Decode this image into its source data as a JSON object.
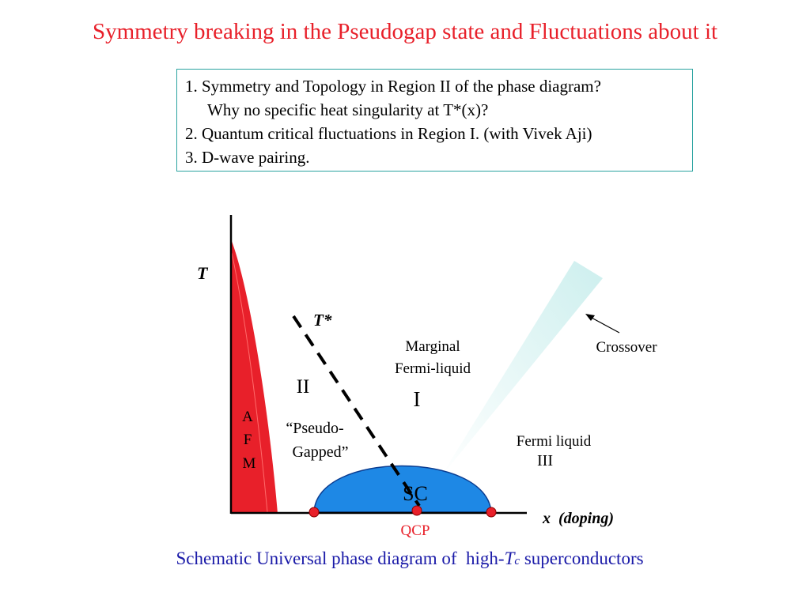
{
  "title": "Symmetry breaking in the Pseudogap state and Fluctuations about it",
  "questions": [
    "1. Symmetry and Topology in Region II of the phase diagram?",
    "Why no specific heat singularity at T*(x)?",
    "2. Quantum critical fluctuations in Region I. (with Vivek Aji)",
    "3. D-wave pairing."
  ],
  "diagram": {
    "y_axis_label": "T",
    "x_axis_label": "x  (doping)",
    "tstar_label": "T*",
    "marginal_line1": "Marginal",
    "marginal_line2": "Fermi-liquid",
    "region_one": "I",
    "region_two": "II",
    "region_three": "III",
    "pseudo_line1": "“Pseudo-",
    "pseudo_line2": "Gapped”",
    "afm_a": "A",
    "afm_f": "F",
    "afm_m": "M",
    "fermi_liquid": "Fermi liquid",
    "crossover": "Crossover",
    "sc": "SC",
    "qcp": "QCP",
    "colors": {
      "afm_fill": "#e8202a",
      "sc_fill": "#1e88e5",
      "crossover_fill": "#d6f3f2",
      "point_fill": "#e8202a"
    }
  },
  "caption_prefix": "Schematic Universal phase diagram of  high-",
  "caption_t": "T",
  "caption_c": "c",
  "caption_suffix": " superconductors"
}
